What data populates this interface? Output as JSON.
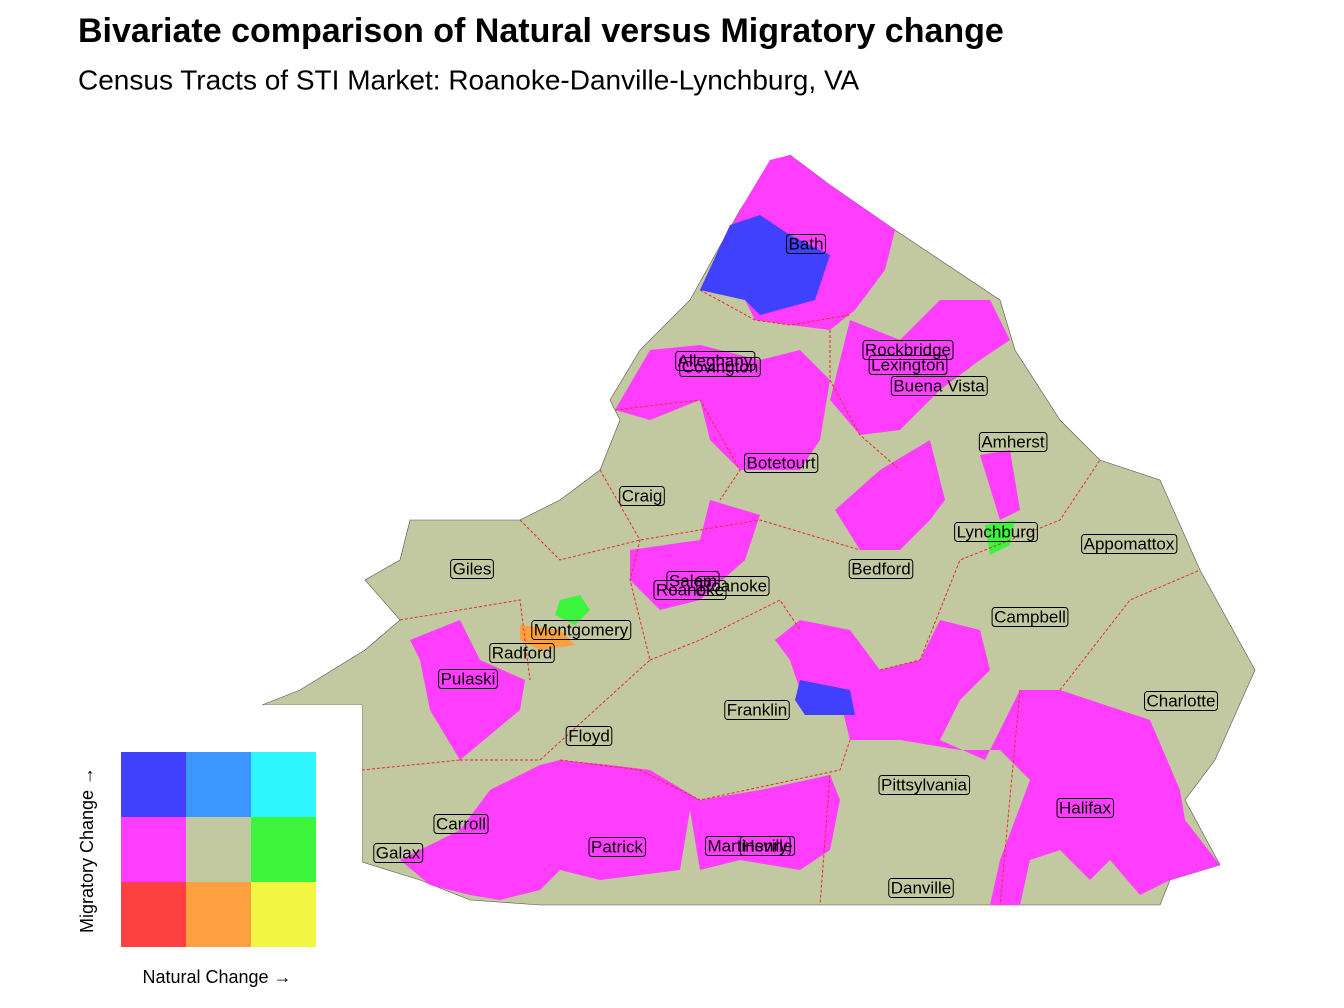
{
  "header": {
    "title": "Bivariate comparison of Natural versus Migratory change",
    "subtitle": "Census Tracts of STI Market: Roanoke-Danville-Lynchburg, VA"
  },
  "labels": [
    "Bath",
    "Alleghany",
    "Covington",
    "Rockbridge",
    "Lexington",
    "Buena Vista",
    "Amherst",
    "Botetourt",
    "Craig",
    "Lynchburg",
    "Appomattox",
    "Giles",
    "Bedford",
    "Salem",
    "Roanoke",
    "Roanoke",
    "Montgomery",
    "Campbell",
    "Radford",
    "Pulaski",
    "Charlotte",
    "Franklin",
    "Floyd",
    "Pittsylvania",
    "Carroll",
    "Halifax",
    "Galax",
    "Patrick",
    "Martinsville",
    "Henry",
    "Danville"
  ],
  "legend": {
    "x_label": "Natural Change →",
    "y_label": "Migratory Change →",
    "colors": [
      [
        "#4040ff",
        "#3d95ff",
        "#2ff5ff"
      ],
      [
        "#ff3dff",
        "#c2c8a0",
        "#3df43d"
      ],
      [
        "#ff4040",
        "#ffa040",
        "#f2f542"
      ]
    ]
  }
}
